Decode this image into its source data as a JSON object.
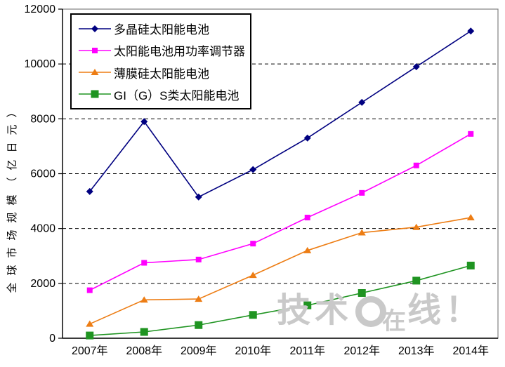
{
  "watermark": {
    "left": "技术",
    "small": "在",
    "right": "线！"
  },
  "chart_data": {
    "type": "line",
    "title": "",
    "xlabel": "",
    "ylabel": "全球市场规模（亿日元）",
    "categories": [
      "2007年",
      "2008年",
      "2009年",
      "2010年",
      "2011年",
      "2012年",
      "2013年",
      "2014年"
    ],
    "ylim": [
      0,
      12000
    ],
    "ytick_step": 2000,
    "grid": "horizontal-dashed",
    "legend_position": "top-left",
    "plot_border_color": "#808080",
    "axis_color": "#000000",
    "series": [
      {
        "name": "多晶硅太阳能电池",
        "color": "#000080",
        "marker": "diamond",
        "marker_size": 10,
        "values": [
          5350,
          7900,
          5150,
          6150,
          7300,
          8600,
          9900,
          11200
        ]
      },
      {
        "name": "太阳能电池用功率调节器",
        "color": "#FF00FF",
        "marker": "square",
        "marker_size": 8,
        "values": [
          1750,
          2750,
          2870,
          3450,
          4400,
          5300,
          6300,
          7450
        ]
      },
      {
        "name": "薄膜硅太阳能电池",
        "color": "#ED7D14",
        "marker": "triangle",
        "marker_size": 10,
        "values": [
          520,
          1400,
          1430,
          2300,
          3200,
          3850,
          4050,
          4400
        ]
      },
      {
        "name": "GI（G）S类太阳能电池",
        "color": "#1F9421",
        "marker": "square",
        "marker_size": 11,
        "values": [
          100,
          230,
          480,
          850,
          1200,
          1650,
          2100,
          2650
        ]
      }
    ]
  }
}
